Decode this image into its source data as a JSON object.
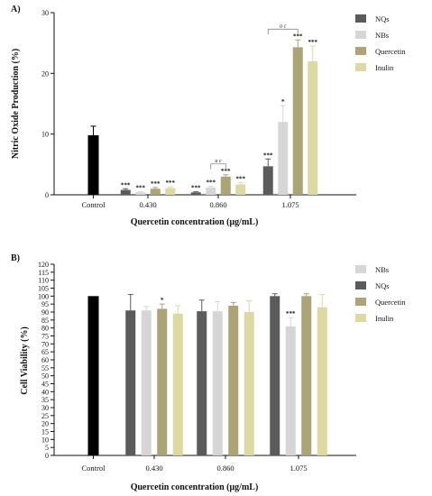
{
  "colors": {
    "NQs": "#5b5b5b",
    "NBs": "#d6d6d6",
    "Quercetin": "#aca377",
    "Inulin": "#dcd9a2",
    "Control": "#000000"
  },
  "chart_data": [
    {
      "type": "bar",
      "panel_label": "A)",
      "ylabel": "Nitric Oxide Production (%)",
      "xlabel": "Quercetin concentration  (μg/mL)",
      "ylim": [
        0,
        30
      ],
      "yticks": [
        0,
        10,
        20,
        30
      ],
      "legend_position": "top-right",
      "legend_order": [
        "NQs",
        "NBs",
        "Quercetin",
        "Inulin"
      ],
      "control": {
        "label": "Control",
        "value": 9.8,
        "error": 1.5
      },
      "categories": [
        "0.430",
        "0.860",
        "1.075"
      ],
      "series": [
        {
          "name": "NQs",
          "values": [
            0.8,
            0.4,
            4.7
          ],
          "errors": [
            0.2,
            0.1,
            1.2
          ],
          "sig": [
            "***",
            "***",
            "***"
          ]
        },
        {
          "name": "NBs",
          "values": [
            0.4,
            1.2,
            12.0
          ],
          "errors": [
            0.1,
            0.2,
            2.7
          ],
          "sig": [
            "***",
            "***",
            "*"
          ]
        },
        {
          "name": "Quercetin",
          "values": [
            1.0,
            3.0,
            24.3
          ],
          "errors": [
            0.2,
            0.3,
            1.2
          ],
          "sig": [
            "***",
            "***",
            "***"
          ]
        },
        {
          "name": "Inulin",
          "values": [
            1.1,
            1.7,
            22.0
          ],
          "errors": [
            0.2,
            0.3,
            2.5
          ],
          "sig": [
            "***",
            "***",
            "***"
          ]
        }
      ],
      "brackets": [
        {
          "category": "0.860",
          "from": "NBs",
          "to": "Quercetin",
          "label": "a c"
        },
        {
          "category": "1.075",
          "from": "NQs",
          "to": "Quercetin",
          "label": "a c"
        }
      ]
    },
    {
      "type": "bar",
      "panel_label": "B)",
      "ylabel": "Cell Viability (%)",
      "xlabel": "Quercetin concentration  (μg/mL)",
      "ylim": [
        0,
        120
      ],
      "yticks": [
        0,
        5,
        10,
        15,
        20,
        25,
        30,
        35,
        40,
        45,
        50,
        55,
        60,
        65,
        70,
        75,
        80,
        85,
        90,
        95,
        100,
        105,
        110,
        115,
        120
      ],
      "legend_position": "top-right",
      "legend_order": [
        "NBs",
        "NQs",
        "Quercetin",
        "Inulin"
      ],
      "control": {
        "label": "Control",
        "value": 100,
        "error": 0
      },
      "categories": [
        "0.430",
        "0.860",
        "1.075"
      ],
      "series": [
        {
          "name": "NQs",
          "values": [
            91,
            90.5,
            100
          ],
          "errors": [
            10,
            7,
            1.5
          ],
          "sig": [
            "",
            "",
            ""
          ]
        },
        {
          "name": "NBs",
          "values": [
            91,
            90.5,
            81
          ],
          "errors": [
            2.5,
            6,
            5.5
          ],
          "sig": [
            "",
            "",
            "***"
          ]
        },
        {
          "name": "Quercetin",
          "values": [
            92,
            94,
            100
          ],
          "errors": [
            3,
            2,
            1.5
          ],
          "sig": [
            "*",
            "",
            ""
          ]
        },
        {
          "name": "Inulin",
          "values": [
            89,
            90,
            93
          ],
          "errors": [
            5,
            7,
            8
          ],
          "sig": [
            "",
            "",
            ""
          ]
        }
      ],
      "brackets": []
    }
  ]
}
